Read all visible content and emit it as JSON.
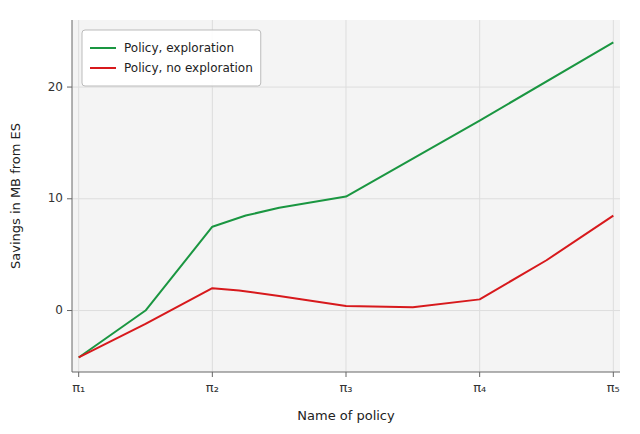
{
  "chart_data": {
    "type": "line",
    "xlabel": "Name of policy",
    "ylabel": "Savings in MB from ES",
    "series": [
      {
        "name": "Policy, exploration",
        "color": "#1a9641",
        "x": [
          0,
          0.5,
          1,
          1.25,
          1.5,
          2,
          3,
          4
        ],
        "values": [
          -4.2,
          0.0,
          7.5,
          8.5,
          9.2,
          10.2,
          17.0,
          24.0
        ]
      },
      {
        "name": "Policy, no exploration",
        "color": "#d7191c",
        "x": [
          0,
          0.5,
          1,
          1.2,
          1.5,
          2,
          2.5,
          3,
          3.5,
          4
        ],
        "values": [
          -4.2,
          -1.2,
          2.0,
          1.8,
          1.3,
          0.4,
          0.3,
          1.0,
          4.5,
          8.5
        ]
      }
    ],
    "xlim": [
      -0.05,
      4.05
    ],
    "xticks": [
      {
        "value": 0,
        "label": "π₁"
      },
      {
        "value": 1,
        "label": "π₂"
      },
      {
        "value": 2,
        "label": "π₃"
      },
      {
        "value": 3,
        "label": "π₄"
      },
      {
        "value": 4,
        "label": "π₅"
      }
    ],
    "ylim": [
      -5.5,
      26
    ],
    "yticks": [
      0,
      10,
      20
    ],
    "grid": true,
    "legend": "upper-left"
  }
}
